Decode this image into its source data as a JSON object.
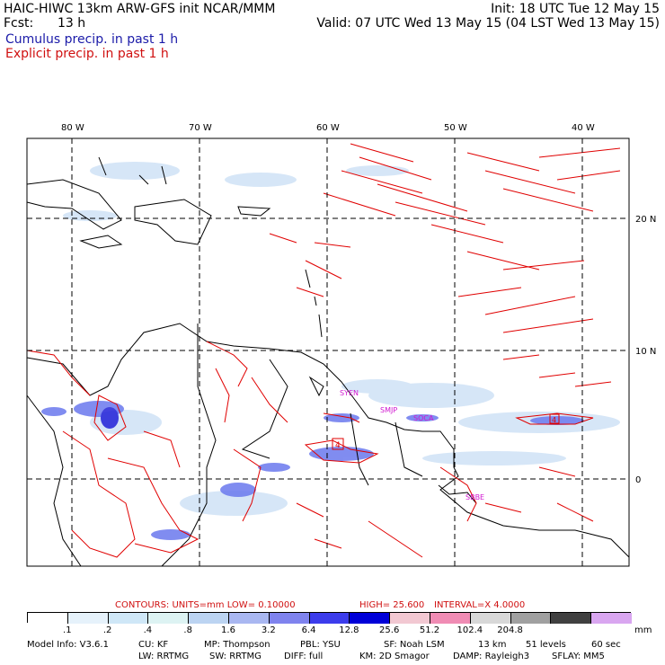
{
  "header": {
    "model_title": "HAIC-HIWC 13km ARW-GFS init   NCAR/MMM",
    "init_time": "Init: 18 UTC Tue 12 May 15",
    "forecast_label": "Fcst:",
    "forecast_hours": "13 h",
    "valid_time": "Valid: 07 UTC Wed 13 May 15 (04 LST Wed 13 May 15)",
    "field_cumulus": "Cumulus precip. in past 1 h",
    "field_explicit": "Explicit precip. in past 1 h"
  },
  "map": {
    "lon_labels": [
      "80 W",
      "70 W",
      "60 W",
      "50 W",
      "40 W"
    ],
    "lat_labels": [
      "20 N",
      "10 N",
      "0"
    ],
    "stations": [
      "SYEN",
      "SMJP",
      "SOCA",
      "SBBE"
    ],
    "station_box_labels": [
      "4",
      "4"
    ]
  },
  "contours": {
    "text_units": "CONTOURS:  UNITS=mm  LOW= 0.10000",
    "text_high": "HIGH=  25.600",
    "text_interval": "INTERVAL=X  4.0000"
  },
  "colorbar": {
    "colors": [
      "#ffffff",
      "#e6f2fb",
      "#cfe7f7",
      "#ddf3f3",
      "#bcd4f2",
      "#a9b7f1",
      "#7f83ee",
      "#3c3cec",
      "#0000d8",
      "#f2c8d2",
      "#f08cb4",
      "#d8d8d8",
      "#a0a0a0",
      "#404040",
      "#d9a6f0"
    ],
    "labels": [
      ".1",
      ".2",
      ".4",
      ".8",
      "1.6",
      "3.2",
      "6.4",
      "12.8",
      "25.6",
      "51.2",
      "102.4",
      "204.8"
    ],
    "unit": "mm"
  },
  "model_info": {
    "line1": [
      "Model Info: V3.6.1",
      "CU: KF",
      "MP: Thompson",
      "PBL: YSU",
      "SF: Noah LSM",
      "13 km",
      "51 levels",
      "60 sec"
    ],
    "line2": [
      "LW: RRTMG",
      "SW: RRTMG",
      "DIFF: full",
      "KM: 2D Smagor",
      "DAMP: Rayleigh3",
      "SFLAY: MM5"
    ]
  },
  "colors": {
    "explicit": "#e00000",
    "cumulus": "#6b79ee",
    "grid": "#000000"
  }
}
